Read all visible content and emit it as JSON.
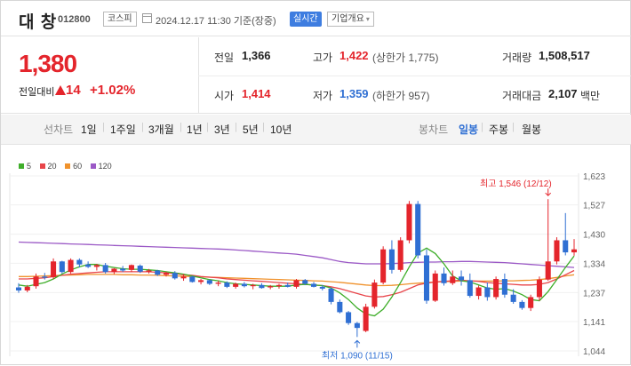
{
  "header": {
    "name": "대 창",
    "code": "012800",
    "market": "코스피",
    "datetime": "2024.12.17 11:30 기준(장중)",
    "realtime_label": "실시간",
    "info_label": "기업개요"
  },
  "price": {
    "current": "1,380",
    "compare_label": "전일대비",
    "change": "14",
    "change_pct": "+1.02%"
  },
  "stats": {
    "prev_label": "전일",
    "prev_value": "1,366",
    "high_label": "고가",
    "high_value": "1,422",
    "high_sub": "(상한가 1,775)",
    "volume_label": "거래량",
    "volume_value": "1,508,517",
    "open_label": "시가",
    "open_value": "1,414",
    "low_label": "저가",
    "low_value": "1,359",
    "low_sub": "(하한가 957)",
    "amount_label": "거래대금",
    "amount_value": "2,107",
    "amount_unit": "백만"
  },
  "tabs": {
    "line_label": "선차트",
    "periods": [
      "1일",
      "1주일",
      "3개월",
      "1년",
      "3년",
      "5년",
      "10년"
    ],
    "candle_label": "봉차트",
    "candle_periods": [
      "일봉",
      "주봉",
      "월봉"
    ],
    "active_candle": "일봉"
  },
  "colors": {
    "up": "#e4252c",
    "down": "#2f6fd3",
    "ma5": "#3fae2a",
    "ma20": "#e8454a",
    "ma60": "#f0922c",
    "ma120": "#9b59c6"
  },
  "chart_data": {
    "type": "candlestick",
    "legend": [
      {
        "name": "5",
        "color": "#3fae2a"
      },
      {
        "name": "20",
        "color": "#e8454a"
      },
      {
        "name": "60",
        "color": "#f0922c"
      },
      {
        "name": "120",
        "color": "#9b59c6"
      }
    ],
    "y_ticks": [
      "1,623",
      "1,527",
      "1,430",
      "1,334",
      "1,237",
      "1,141",
      "1,044"
    ],
    "ylim": [
      1044,
      1623
    ],
    "annotations": {
      "high": "최고 1,546 (12/12)",
      "low": "최저 1,090 (11/15)"
    },
    "candles": [
      [
        1254,
        1268,
        1236,
        1244
      ],
      [
        1244,
        1262,
        1238,
        1256
      ],
      [
        1258,
        1300,
        1250,
        1290
      ],
      [
        1290,
        1302,
        1280,
        1286
      ],
      [
        1288,
        1350,
        1282,
        1340
      ],
      [
        1340,
        1342,
        1300,
        1305
      ],
      [
        1305,
        1350,
        1300,
        1345
      ],
      [
        1345,
        1350,
        1320,
        1330
      ],
      [
        1330,
        1340,
        1318,
        1322
      ],
      [
        1322,
        1332,
        1310,
        1328
      ],
      [
        1328,
        1335,
        1300,
        1305
      ],
      [
        1305,
        1318,
        1298,
        1316
      ],
      [
        1316,
        1325,
        1305,
        1310
      ],
      [
        1312,
        1330,
        1305,
        1328
      ],
      [
        1326,
        1330,
        1302,
        1306
      ],
      [
        1306,
        1315,
        1300,
        1310
      ],
      [
        1310,
        1312,
        1292,
        1296
      ],
      [
        1296,
        1306,
        1290,
        1302
      ],
      [
        1302,
        1308,
        1280,
        1284
      ],
      [
        1284,
        1298,
        1276,
        1290
      ],
      [
        1290,
        1292,
        1270,
        1272
      ],
      [
        1272,
        1282,
        1264,
        1278
      ],
      [
        1278,
        1280,
        1262,
        1266
      ],
      [
        1266,
        1276,
        1258,
        1270
      ],
      [
        1270,
        1274,
        1252,
        1256
      ],
      [
        1256,
        1270,
        1250,
        1266
      ],
      [
        1266,
        1272,
        1254,
        1258
      ],
      [
        1258,
        1266,
        1248,
        1262
      ],
      [
        1262,
        1268,
        1250,
        1252
      ],
      [
        1254,
        1262,
        1248,
        1258
      ],
      [
        1258,
        1266,
        1250,
        1262
      ],
      [
        1262,
        1270,
        1254,
        1256
      ],
      [
        1256,
        1282,
        1250,
        1278
      ],
      [
        1278,
        1282,
        1262,
        1266
      ],
      [
        1266,
        1272,
        1254,
        1256
      ],
      [
        1256,
        1262,
        1244,
        1250
      ],
      [
        1250,
        1254,
        1198,
        1206
      ],
      [
        1206,
        1214,
        1168,
        1172
      ],
      [
        1172,
        1176,
        1130,
        1136
      ],
      [
        1136,
        1140,
        1090,
        1120
      ],
      [
        1110,
        1200,
        1106,
        1190
      ],
      [
        1190,
        1280,
        1184,
        1270
      ],
      [
        1270,
        1390,
        1264,
        1380
      ],
      [
        1380,
        1410,
        1300,
        1312
      ],
      [
        1312,
        1420,
        1306,
        1410
      ],
      [
        1410,
        1540,
        1400,
        1530
      ],
      [
        1530,
        1540,
        1350,
        1360
      ],
      [
        1360,
        1380,
        1200,
        1210
      ],
      [
        1210,
        1310,
        1206,
        1300
      ],
      [
        1300,
        1320,
        1260,
        1268
      ],
      [
        1268,
        1310,
        1262,
        1290
      ],
      [
        1290,
        1310,
        1260,
        1278
      ],
      [
        1278,
        1300,
        1220,
        1226
      ],
      [
        1226,
        1260,
        1214,
        1254
      ],
      [
        1254,
        1270,
        1210,
        1222
      ],
      [
        1222,
        1290,
        1214,
        1282
      ],
      [
        1282,
        1300,
        1220,
        1230
      ],
      [
        1230,
        1248,
        1200,
        1206
      ],
      [
        1206,
        1212,
        1180,
        1186
      ],
      [
        1186,
        1230,
        1176,
        1222
      ],
      [
        1222,
        1290,
        1210,
        1280
      ],
      [
        1280,
        1546,
        1276,
        1340
      ],
      [
        1340,
        1420,
        1330,
        1410
      ],
      [
        1410,
        1500,
        1360,
        1370
      ],
      [
        1370,
        1414,
        1359,
        1380
      ]
    ],
    "ma5": [
      1262,
      1258,
      1264,
      1270,
      1282,
      1298,
      1312,
      1322,
      1330,
      1330,
      1324,
      1320,
      1316,
      1314,
      1314,
      1312,
      1310,
      1306,
      1302,
      1298,
      1292,
      1286,
      1280,
      1276,
      1270,
      1266,
      1264,
      1262,
      1260,
      1258,
      1258,
      1258,
      1262,
      1264,
      1262,
      1260,
      1252,
      1236,
      1214,
      1186,
      1166,
      1160,
      1182,
      1222,
      1270,
      1322,
      1368,
      1384,
      1366,
      1332,
      1292,
      1276,
      1272,
      1262,
      1252,
      1248,
      1250,
      1242,
      1230,
      1214,
      1210,
      1240,
      1280,
      1320,
      1358
    ],
    "ma20": [
      1282,
      1282,
      1284,
      1286,
      1290,
      1294,
      1298,
      1300,
      1302,
      1304,
      1306,
      1306,
      1306,
      1306,
      1306,
      1306,
      1304,
      1302,
      1300,
      1296,
      1294,
      1290,
      1288,
      1286,
      1282,
      1280,
      1278,
      1276,
      1274,
      1272,
      1270,
      1268,
      1266,
      1264,
      1262,
      1260,
      1256,
      1250,
      1242,
      1234,
      1226,
      1222,
      1224,
      1230,
      1238,
      1250,
      1262,
      1268,
      1272,
      1274,
      1276,
      1278,
      1276,
      1274,
      1270,
      1268,
      1266,
      1264,
      1262,
      1262,
      1264,
      1270,
      1282,
      1296,
      1310
    ],
    "ma60": [
      1290,
      1290,
      1291,
      1292,
      1293,
      1294,
      1295,
      1296,
      1297,
      1297,
      1297,
      1297,
      1296,
      1296,
      1295,
      1295,
      1294,
      1293,
      1292,
      1291,
      1290,
      1289,
      1288,
      1287,
      1286,
      1285,
      1284,
      1283,
      1282,
      1281,
      1280,
      1279,
      1278,
      1277,
      1276,
      1275,
      1273,
      1271,
      1268,
      1265,
      1262,
      1260,
      1260,
      1261,
      1263,
      1266,
      1268,
      1270,
      1272,
      1273,
      1274,
      1275,
      1275,
      1275,
      1275,
      1275,
      1276,
      1276,
      1277,
      1278,
      1280,
      1283,
      1287,
      1292,
      1296
    ],
    "ma120": [
      1404,
      1403,
      1402,
      1401,
      1400,
      1399,
      1398,
      1397,
      1396,
      1395,
      1394,
      1393,
      1392,
      1391,
      1390,
      1389,
      1388,
      1387,
      1386,
      1385,
      1384,
      1383,
      1382,
      1381,
      1380,
      1378,
      1376,
      1374,
      1372,
      1370,
      1368,
      1366,
      1364,
      1360,
      1356,
      1352,
      1346,
      1340,
      1336,
      1334,
      1332,
      1332,
      1332,
      1333,
      1334,
      1336,
      1337,
      1338,
      1338,
      1339,
      1339,
      1340,
      1340,
      1339,
      1338,
      1337,
      1336,
      1334,
      1332,
      1330,
      1328,
      1326,
      1324,
      1322,
      1320
    ]
  }
}
